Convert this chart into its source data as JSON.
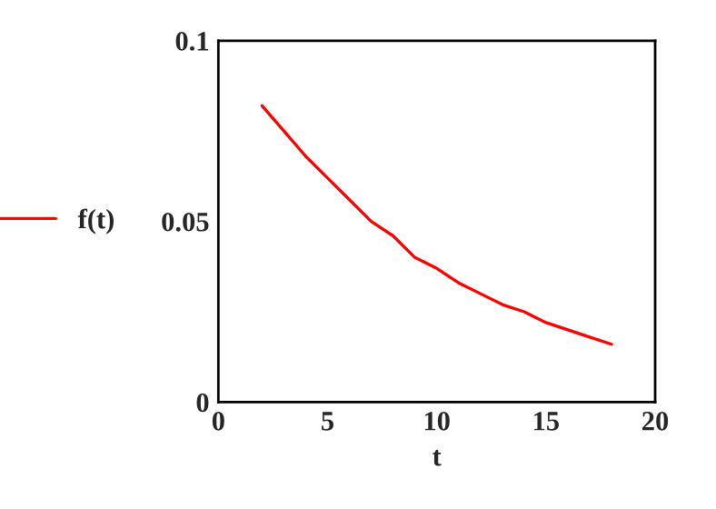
{
  "chart_data": {
    "type": "line",
    "xlabel": "t",
    "xlim": [
      0,
      20
    ],
    "ylim": [
      0,
      0.1
    ],
    "xticks": [
      0,
      5,
      10,
      15,
      20
    ],
    "yticks": [
      0,
      0.05,
      0.1
    ],
    "grid": false,
    "legend": "left",
    "marker": "none",
    "line_style": "solid",
    "series": [
      {
        "name": "f(t)",
        "color": "#ff0000",
        "x": [
          2,
          3,
          4,
          5,
          6,
          7,
          8,
          9,
          10,
          11,
          12,
          13,
          14,
          15,
          16,
          17,
          18
        ],
        "values": [
          0.082,
          0.075,
          0.068,
          0.062,
          0.056,
          0.05,
          0.046,
          0.04,
          0.037,
          0.033,
          0.03,
          0.027,
          0.025,
          0.022,
          0.02,
          0.018,
          0.016
        ]
      }
    ]
  }
}
